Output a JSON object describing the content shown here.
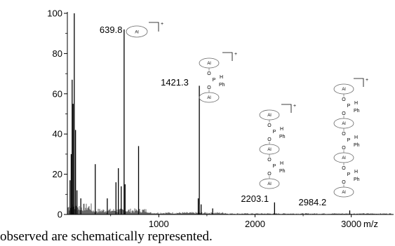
{
  "chart_data": {
    "type": "line",
    "title": "",
    "xlabel": "m/z",
    "ylabel": "",
    "xlim": [
      50,
      3440
    ],
    "ylim": [
      0,
      100
    ],
    "x_ticks": [
      {
        "value": 1000,
        "label": "1000"
      },
      {
        "value": 2000,
        "label": "2000"
      },
      {
        "value": 3000,
        "label": "3000"
      }
    ],
    "y_ticks": [
      {
        "value": 0,
        "label": "0"
      },
      {
        "value": 20,
        "label": "20"
      },
      {
        "value": 40,
        "label": "40"
      },
      {
        "value": 60,
        "label": "60"
      },
      {
        "value": 80,
        "label": "80"
      },
      {
        "value": 100,
        "label": "100"
      }
    ],
    "peaks": [
      {
        "x": 78,
        "y": 17
      },
      {
        "x": 90,
        "y": 30
      },
      {
        "x": 100,
        "y": 67
      },
      {
        "x": 110,
        "y": 55
      },
      {
        "x": 122,
        "y": 100
      },
      {
        "x": 135,
        "y": 42
      },
      {
        "x": 150,
        "y": 12
      },
      {
        "x": 190,
        "y": 8
      },
      {
        "x": 340,
        "y": 25
      },
      {
        "x": 465,
        "y": 8
      },
      {
        "x": 555,
        "y": 16
      },
      {
        "x": 580,
        "y": 23
      },
      {
        "x": 610,
        "y": 14
      },
      {
        "x": 639.8,
        "y": 92
      },
      {
        "x": 650,
        "y": 15
      },
      {
        "x": 790,
        "y": 34
      },
      {
        "x": 1410,
        "y": 8
      },
      {
        "x": 1421.3,
        "y": 64
      },
      {
        "x": 1440,
        "y": 5
      },
      {
        "x": 1560,
        "y": 3
      },
      {
        "x": 2203.1,
        "y": 6
      },
      {
        "x": 2984.2,
        "y": 2
      }
    ],
    "annotations": [
      {
        "x": 639.8,
        "label": "639.8"
      },
      {
        "x": 1421.3,
        "label": "1421.3"
      },
      {
        "x": 2203.1,
        "label": "2203.1"
      },
      {
        "x": 2984.2,
        "label": "2984.2"
      }
    ]
  },
  "structures": {
    "al": "Al",
    "charge": "+",
    "o": "O",
    "p": "P",
    "h": "H",
    "ph": "Ph",
    "ph_last": "Ph"
  },
  "caption": "observed are schematically represented."
}
